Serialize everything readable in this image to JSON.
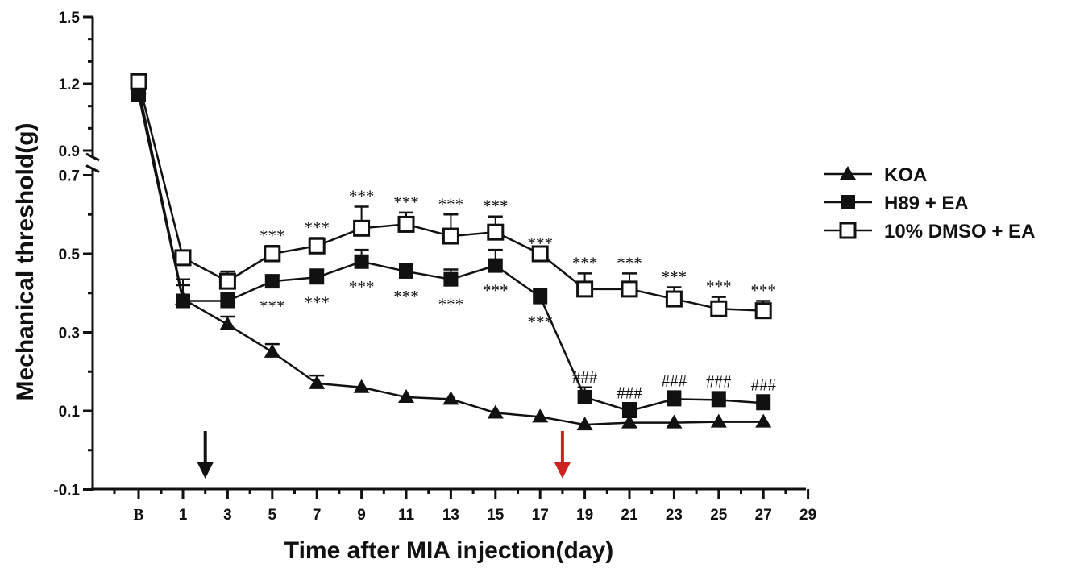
{
  "chart_data": {
    "type": "line",
    "xlabel": "Time after MIA injection(day)",
    "ylabel": "Mechanical threshold(g)",
    "x_ticks": [
      "B",
      "1",
      "3",
      "5",
      "7",
      "9",
      "11",
      "13",
      "15",
      "17",
      "19",
      "21",
      "23",
      "25",
      "27",
      "29"
    ],
    "y_ticks_lower": [
      "-0.1",
      "0.1",
      "0.3",
      "0.5",
      "0.7"
    ],
    "y_ticks_upper": [
      "0.9",
      "1.2",
      "1.5"
    ],
    "ylim": [
      -0.1,
      1.5
    ],
    "axis_break": [
      0.7,
      0.9
    ],
    "series": [
      {
        "name": "KOA",
        "marker": "filled-triangle",
        "x": [
          "B",
          1,
          3,
          5,
          7,
          9,
          11,
          13,
          15,
          17,
          19,
          21,
          23,
          25,
          27
        ],
        "values": [
          1.18,
          0.385,
          0.32,
          0.25,
          0.17,
          0.16,
          0.135,
          0.13,
          0.095,
          0.085,
          0.065,
          0.07,
          0.07,
          0.072,
          0.072
        ],
        "errors": [
          null,
          0.05,
          0.02,
          0.02,
          0.02,
          null,
          null,
          null,
          null,
          null,
          null,
          null,
          null,
          null,
          null
        ]
      },
      {
        "name": "H89 + EA",
        "marker": "filled-square",
        "x": [
          "B",
          1,
          3,
          5,
          7,
          9,
          11,
          13,
          15,
          17,
          19,
          21,
          23,
          25,
          27
        ],
        "values": [
          1.15,
          0.38,
          0.38,
          0.43,
          0.44,
          0.48,
          0.455,
          0.435,
          0.47,
          0.39,
          0.135,
          0.1,
          0.13,
          0.128,
          0.12
        ],
        "errors": [
          null,
          0.04,
          0.02,
          0.015,
          0.02,
          0.03,
          0.02,
          0.025,
          0.04,
          0.02,
          0.025,
          0.02,
          0.02,
          0.02,
          0.02
        ]
      },
      {
        "name": "10% DMSO + EA",
        "marker": "open-square",
        "x": [
          "B",
          1,
          3,
          5,
          7,
          9,
          11,
          13,
          15,
          17,
          19,
          21,
          23,
          25,
          27
        ],
        "values": [
          1.21,
          0.49,
          0.43,
          0.5,
          0.52,
          0.565,
          0.575,
          0.545,
          0.555,
          0.5,
          0.41,
          0.41,
          0.385,
          0.36,
          0.355
        ],
        "errors": [
          null,
          null,
          0.025,
          0.02,
          0.02,
          0.055,
          0.03,
          0.055,
          0.04,
          null,
          0.04,
          0.04,
          0.03,
          0.03,
          0.025
        ]
      }
    ],
    "annotations": {
      "above_dmso": {
        "text": "***",
        "days": [
          5,
          7,
          9,
          11,
          13,
          15,
          17,
          19,
          21,
          23,
          25,
          27
        ]
      },
      "below_h89": {
        "text": "***",
        "days": [
          5,
          7,
          9,
          11,
          13,
          15,
          17
        ]
      },
      "above_h89": {
        "text": "###",
        "days": [
          19,
          21,
          23,
          25,
          27
        ]
      }
    },
    "arrows": [
      {
        "day": 2,
        "color": "#111111"
      },
      {
        "day": 18,
        "color": "#cc2222"
      }
    ],
    "legend_position": "right"
  }
}
